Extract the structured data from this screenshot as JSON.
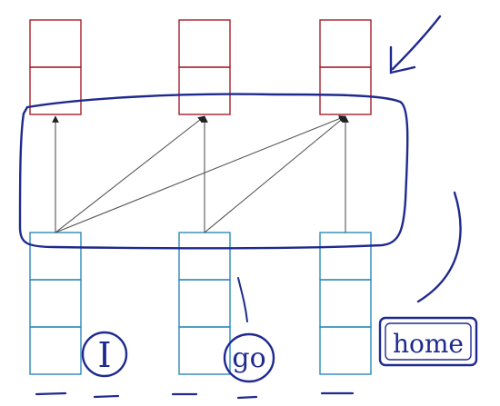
{
  "output_stack": {
    "columns": 3,
    "cells_per_column": 2,
    "color": "#a6202b"
  },
  "input_stack": {
    "columns": 3,
    "cells_per_column": 3,
    "color": "#2b8ab8"
  },
  "connections": [
    {
      "from": 0,
      "to": 0
    },
    {
      "from": 0,
      "to": 1
    },
    {
      "from": 0,
      "to": 2
    },
    {
      "from": 1,
      "to": 1
    },
    {
      "from": 1,
      "to": 2
    },
    {
      "from": 2,
      "to": 2
    }
  ],
  "arrow_color": "#555555",
  "ink_color": "#1f2a8f",
  "handwritten_labels": [
    "I",
    "go",
    "home"
  ]
}
